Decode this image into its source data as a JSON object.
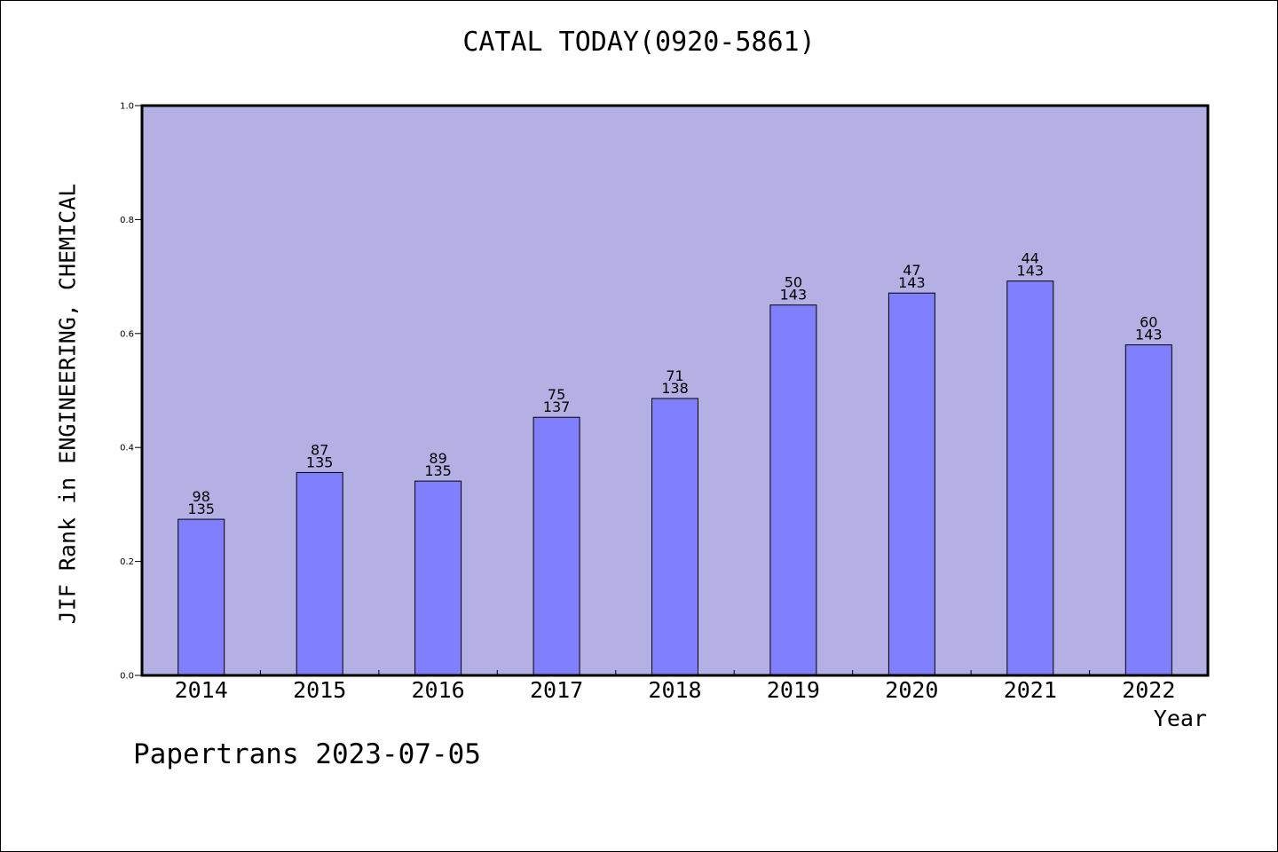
{
  "chart_data": {
    "type": "bar",
    "title": "CATAL TODAY(0920-5861)",
    "xlabel": "Year",
    "ylabel": "JIF Rank in ENGINEERING, CHEMICAL",
    "ylim": [
      0,
      1.0
    ],
    "yticks": [
      "0.0",
      "0.2",
      "0.4",
      "0.6",
      "0.8",
      "1.0"
    ],
    "grid": false,
    "categories": [
      "2014",
      "2015",
      "2016",
      "2017",
      "2018",
      "2019",
      "2020",
      "2021",
      "2022"
    ],
    "values": [
      0.274,
      0.356,
      0.341,
      0.453,
      0.486,
      0.65,
      0.671,
      0.692,
      0.58
    ],
    "rank": [
      "98",
      "87",
      "89",
      "75",
      "71",
      "50",
      "47",
      "44",
      "60"
    ],
    "total": [
      "135",
      "135",
      "135",
      "137",
      "138",
      "143",
      "143",
      "143",
      "143"
    ],
    "colors": {
      "plot_background": "#b5b0e3",
      "bar_fill": "#8080ff",
      "bar_stroke": "#000000"
    }
  },
  "footer": "Papertrans 2023-07-05"
}
